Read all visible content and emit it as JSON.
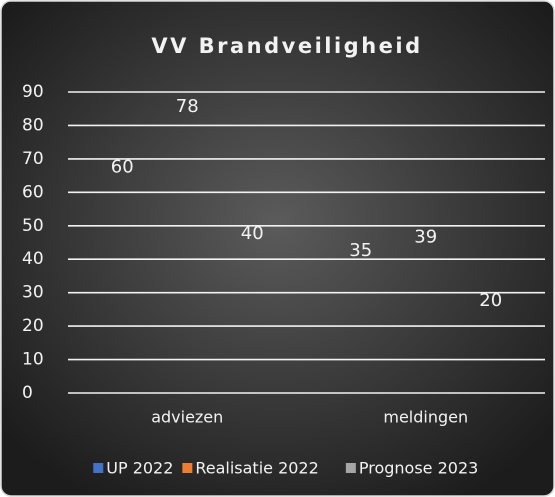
{
  "chart_data": {
    "type": "bar",
    "title": "VV Brandveiligheid",
    "categories": [
      "adviezen",
      "meldingen"
    ],
    "series": [
      {
        "name": "UP 2022",
        "color": "#4472c4",
        "values": [
          60,
          35
        ]
      },
      {
        "name": "Realisatie 2022",
        "color": "#ed7d31",
        "values": [
          78,
          39
        ]
      },
      {
        "name": "Prognose 2023",
        "color": "#a5a5a5",
        "values": [
          40,
          20
        ]
      }
    ],
    "ylim": [
      0,
      90
    ],
    "yticks": [
      0,
      10,
      20,
      30,
      40,
      50,
      60,
      70,
      80,
      90
    ],
    "grid": true,
    "legend": "bottom"
  }
}
